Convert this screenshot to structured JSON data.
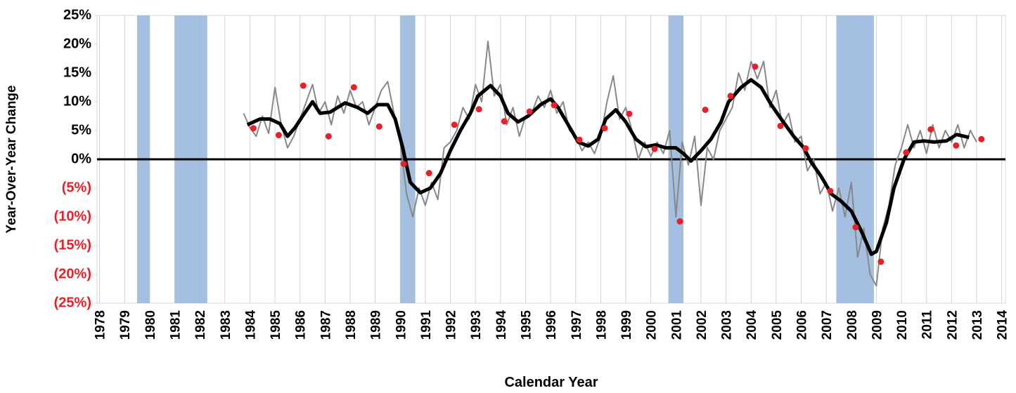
{
  "chart_data": {
    "type": "line",
    "y_label": "Year-Over-Year Change",
    "x_label": "Calendar Year",
    "xlim": [
      1977.9,
      2014.15
    ],
    "xticks": [
      1978,
      1979,
      1980,
      1981,
      1982,
      1983,
      1984,
      1985,
      1986,
      1987,
      1988,
      1989,
      1990,
      1991,
      1992,
      1993,
      1994,
      1995,
      1996,
      1997,
      1998,
      1999,
      2000,
      2001,
      2002,
      2003,
      2004,
      2005,
      2006,
      2007,
      2008,
      2009,
      2010,
      2011,
      2012,
      2013,
      2014
    ],
    "ylim": [
      -25,
      25
    ],
    "yticks": [
      {
        "value": 25,
        "label": "25%"
      },
      {
        "value": 20,
        "label": "20%"
      },
      {
        "value": 15,
        "label": "15%"
      },
      {
        "value": 10,
        "label": "10%"
      },
      {
        "value": 5,
        "label": "5%"
      },
      {
        "value": 0,
        "label": "0%"
      },
      {
        "value": -5,
        "label": "(5%)"
      },
      {
        "value": -10,
        "label": "(10%)"
      },
      {
        "value": -15,
        "label": "(15%)"
      },
      {
        "value": -20,
        "label": "(20%)"
      },
      {
        "value": -25,
        "label": "(25%)"
      }
    ],
    "positive_tick_color": "#000000",
    "negative_tick_color": "#e8202a",
    "x_grid": true,
    "zero_line": true,
    "shaded_ranges": [
      [
        1979.5,
        1980.0
      ],
      [
        1981.0,
        1982.3
      ],
      [
        1990.0,
        1990.6
      ],
      [
        2000.7,
        2001.3
      ],
      [
        2007.4,
        2008.9
      ]
    ],
    "shade_color": "#9ab8dc",
    "series": [
      {
        "type": "line",
        "color": "#888888",
        "width": 2,
        "x": [
          1983.75,
          1984.0,
          1984.25,
          1984.5,
          1984.75,
          1985.0,
          1985.25,
          1985.5,
          1985.75,
          1986.0,
          1986.25,
          1986.5,
          1986.75,
          1987.0,
          1987.25,
          1987.5,
          1987.75,
          1988.0,
          1988.25,
          1988.5,
          1988.75,
          1989.0,
          1989.25,
          1989.5,
          1989.75,
          1990.0,
          1990.25,
          1990.5,
          1990.75,
          1991.0,
          1991.25,
          1991.5,
          1991.75,
          1992.0,
          1992.25,
          1992.5,
          1992.75,
          1993.0,
          1993.25,
          1993.5,
          1993.75,
          1994.0,
          1994.25,
          1994.5,
          1994.75,
          1995.0,
          1995.25,
          1995.5,
          1995.75,
          1996.0,
          1996.25,
          1996.5,
          1996.75,
          1997.0,
          1997.25,
          1997.5,
          1997.75,
          1998.0,
          1998.25,
          1998.5,
          1998.75,
          1999.0,
          1999.25,
          1999.5,
          1999.75,
          2000.0,
          2000.25,
          2000.5,
          2000.75,
          2001.0,
          2001.25,
          2001.5,
          2001.75,
          2002.0,
          2002.25,
          2002.5,
          2002.75,
          2003.0,
          2003.25,
          2003.5,
          2003.75,
          2004.0,
          2004.25,
          2004.5,
          2004.75,
          2005.0,
          2005.25,
          2005.5,
          2005.75,
          2006.0,
          2006.25,
          2006.5,
          2006.75,
          2007.0,
          2007.25,
          2007.5,
          2007.75,
          2008.0,
          2008.25,
          2008.5,
          2008.75,
          2009.0,
          2009.25,
          2009.5,
          2009.75,
          2010.0,
          2010.25,
          2010.5,
          2010.75,
          2011.0,
          2011.25,
          2011.5,
          2011.75,
          2012.0,
          2012.25,
          2012.5,
          2012.75,
          2013.0
        ],
        "values": [
          8,
          5.5,
          4,
          7.5,
          4.5,
          12.5,
          6,
          2,
          4,
          7,
          10,
          13,
          8,
          10,
          6,
          11,
          8,
          12,
          9,
          10,
          6,
          9,
          12,
          13.5,
          8,
          3,
          -6,
          -10,
          -5,
          -8,
          -4,
          -7,
          2,
          3,
          5,
          9,
          7,
          13,
          10,
          20.5,
          11,
          13,
          6,
          9,
          4,
          7.5,
          8,
          11,
          9,
          12,
          8,
          10,
          5,
          4,
          1.5,
          3,
          1,
          4,
          10,
          14.5,
          7,
          9,
          5,
          0,
          3,
          0.5,
          3,
          1,
          5,
          -10,
          3,
          -1,
          4,
          -8,
          2,
          0,
          5,
          7,
          9,
          15,
          12,
          17,
          14,
          17,
          9,
          12,
          6,
          8,
          3,
          4,
          -2,
          0,
          -6,
          -4,
          -9,
          -5,
          -10,
          -4,
          -17,
          -12,
          -20,
          -22,
          -12,
          -8,
          -1,
          2,
          6,
          2,
          5,
          1,
          6,
          2,
          5,
          3,
          6,
          2,
          5,
          3
        ]
      },
      {
        "type": "line",
        "color": "#000000",
        "width": 5,
        "x": [
          1983.9,
          1984.4,
          1984.8,
          1985.2,
          1985.5,
          1985.8,
          1986.1,
          1986.5,
          1986.8,
          1987.2,
          1987.8,
          1988.3,
          1988.7,
          1989.1,
          1989.5,
          1989.8,
          1990.1,
          1990.4,
          1990.8,
          1991.2,
          1991.6,
          1992.0,
          1992.4,
          1992.8,
          1993.1,
          1993.6,
          1994.0,
          1994.3,
          1994.7,
          1995.1,
          1995.6,
          1996.0,
          1996.3,
          1996.7,
          1997.1,
          1997.5,
          1997.9,
          1998.2,
          1998.6,
          1999.0,
          1999.4,
          1999.8,
          2000.2,
          2000.6,
          2001.0,
          2001.3,
          2001.6,
          2002.0,
          2002.4,
          2002.8,
          2003.1,
          2003.6,
          2004.0,
          2004.4,
          2004.8,
          2005.2,
          2005.7,
          2006.1,
          2006.4,
          2006.8,
          2007.2,
          2007.6,
          2008.0,
          2008.4,
          2008.8,
          2009.0,
          2009.4,
          2009.7,
          2010.1,
          2010.5,
          2010.9,
          2011.3,
          2011.8,
          2012.2,
          2012.7
        ],
        "values": [
          6,
          7,
          7,
          6.2,
          4,
          5.5,
          7.5,
          10,
          8,
          8.2,
          9.8,
          9,
          8,
          9.5,
          9.5,
          7,
          2,
          -4,
          -5.8,
          -5,
          -2.5,
          1.5,
          5,
          8,
          11,
          12.8,
          11,
          8,
          6.5,
          7.5,
          9.5,
          10.5,
          9,
          6,
          3,
          2.3,
          3.5,
          7,
          8.6,
          6.5,
          3.5,
          2.2,
          2.5,
          2,
          2,
          1,
          -0.3,
          1.5,
          3.5,
          6.5,
          10,
          12.5,
          13.8,
          12.5,
          9.5,
          7,
          4,
          2,
          -0.5,
          -3,
          -6,
          -7.3,
          -9,
          -12.5,
          -16.5,
          -16,
          -11,
          -5,
          0,
          3,
          3.2,
          3,
          3.2,
          4.3,
          3.8
        ]
      },
      {
        "type": "scatter",
        "color": "#e8202a",
        "width": 4.5,
        "x": [
          1984.14,
          1985.15,
          1986.13,
          1987.14,
          1988.15,
          1989.16,
          1990.14,
          1991.15,
          1992.16,
          1993.14,
          1994.15,
          1995.16,
          1996.14,
          1997.15,
          1998.16,
          1999.14,
          2000.15,
          2001.16,
          2002.17,
          2003.18,
          2004.16,
          2005.17,
          2006.18,
          2007.16,
          2008.17,
          2009.18,
          2010.19,
          2011.17,
          2012.18,
          2013.19
        ],
        "values": [
          5.4,
          4.2,
          12.8,
          4,
          12.5,
          5.7,
          -0.8,
          -2.4,
          6,
          8.7,
          6.6,
          8.3,
          9.4,
          3.4,
          5.4,
          7.9,
          1.8,
          -10.8,
          8.6,
          11,
          16.1,
          5.8,
          1.9,
          -5.5,
          -11.8,
          -17.8,
          1.2,
          5.2,
          2.4,
          3.5
        ]
      }
    ]
  }
}
